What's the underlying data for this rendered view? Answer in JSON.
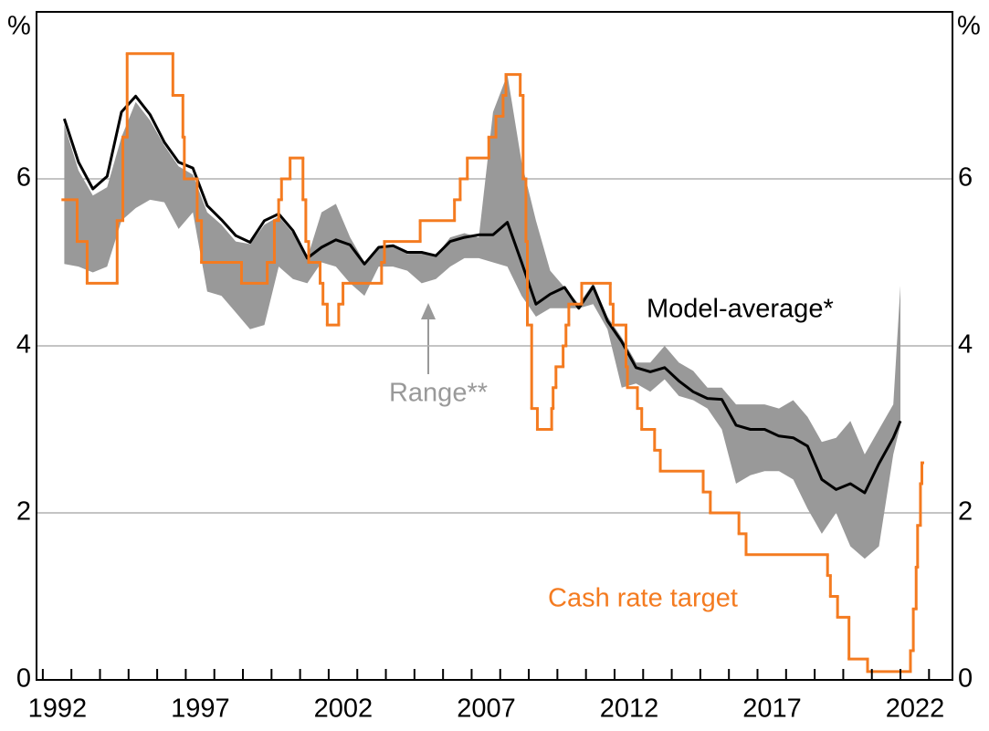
{
  "chart_data": {
    "type": "line",
    "y_label": "%",
    "y2_label": "%",
    "xlim": [
      1991.78,
      2023.82
    ],
    "xticks": [
      1992,
      1997,
      2002,
      2007,
      2012,
      2017,
      2022
    ],
    "xminorticks": [
      1992,
      1993,
      1994,
      1995,
      1996,
      1997,
      1998,
      1999,
      2000,
      2001,
      2002,
      2003,
      2004,
      2005,
      2006,
      2007,
      2008,
      2009,
      2010,
      2011,
      2012,
      2013,
      2014,
      2015,
      2016,
      2017,
      2018,
      2019,
      2020,
      2021,
      2022,
      2023
    ],
    "ylim": [
      0,
      8
    ],
    "yticks": [
      0,
      2,
      4,
      6
    ],
    "y2lim": [
      0,
      8
    ],
    "y2ticks": [
      0,
      2,
      4,
      6
    ],
    "grid": true,
    "band": {
      "name": "Range**",
      "color": "#999999",
      "x": [
        1992.75,
        1993.25,
        1993.75,
        1994.25,
        1994.75,
        1995.25,
        1995.75,
        1996.25,
        1996.75,
        1997.25,
        1997.75,
        1998.25,
        1998.75,
        1999.25,
        1999.75,
        2000.25,
        2000.75,
        2001.25,
        2001.75,
        2002.25,
        2002.75,
        2003.25,
        2003.75,
        2004.25,
        2004.75,
        2005.25,
        2005.75,
        2006.25,
        2006.75,
        2007.25,
        2007.75,
        2008.25,
        2008.75,
        2009.25,
        2009.75,
        2010.25,
        2010.75,
        2011.25,
        2011.75,
        2012.25,
        2012.75,
        2013.25,
        2013.75,
        2014.25,
        2014.75,
        2015.25,
        2015.75,
        2016.25,
        2016.75,
        2017.25,
        2017.75,
        2018.25,
        2018.75,
        2019.25,
        2019.75,
        2020.25,
        2020.75,
        2021.25,
        2021.75,
        2022.0
      ],
      "lower": [
        4.98,
        4.95,
        4.88,
        4.95,
        5.5,
        5.65,
        5.75,
        5.72,
        5.4,
        5.6,
        4.65,
        4.6,
        4.4,
        4.2,
        4.25,
        4.95,
        4.8,
        4.75,
        5.0,
        4.95,
        4.75,
        4.6,
        4.95,
        4.95,
        4.9,
        4.75,
        4.8,
        4.95,
        5.05,
        5.05,
        5.0,
        4.95,
        4.6,
        4.35,
        4.45,
        4.45,
        4.45,
        4.5,
        4.2,
        3.5,
        3.55,
        3.45,
        3.6,
        3.4,
        3.35,
        3.25,
        3.0,
        2.35,
        2.45,
        2.5,
        2.5,
        2.4,
        2.05,
        1.75,
        2.0,
        1.6,
        1.45,
        1.6,
        2.7,
        3.05
      ],
      "upper": [
        6.65,
        6.1,
        5.8,
        5.9,
        6.5,
        6.92,
        6.7,
        6.4,
        6.15,
        6.05,
        5.6,
        5.45,
        5.25,
        5.22,
        5.45,
        5.55,
        5.35,
        5.05,
        5.6,
        5.7,
        5.3,
        5.0,
        5.18,
        5.2,
        5.1,
        5.12,
        5.08,
        5.3,
        5.35,
        5.3,
        6.8,
        7.25,
        6.2,
        5.5,
        4.9,
        4.7,
        4.5,
        4.75,
        4.35,
        4.1,
        3.8,
        3.8,
        4.0,
        3.8,
        3.7,
        3.5,
        3.5,
        3.3,
        3.3,
        3.3,
        3.25,
        3.35,
        3.15,
        2.85,
        2.9,
        3.1,
        2.7,
        3.0,
        3.3,
        4.72
      ]
    },
    "series": [
      {
        "name": "Model-average*",
        "color": "#000000",
        "x": [
          1992.75,
          1993.25,
          1993.75,
          1994.25,
          1994.75,
          1995.25,
          1995.75,
          1996.25,
          1996.75,
          1997.25,
          1997.75,
          1998.25,
          1998.75,
          1999.25,
          1999.75,
          2000.25,
          2000.75,
          2001.25,
          2001.75,
          2002.25,
          2002.75,
          2003.25,
          2003.75,
          2004.25,
          2004.75,
          2005.25,
          2005.75,
          2006.25,
          2006.75,
          2007.25,
          2007.75,
          2008.25,
          2008.75,
          2009.25,
          2009.75,
          2010.25,
          2010.75,
          2011.25,
          2011.75,
          2012.25,
          2012.75,
          2013.25,
          2013.75,
          2014.25,
          2014.75,
          2015.25,
          2015.75,
          2016.25,
          2016.75,
          2017.25,
          2017.75,
          2018.25,
          2018.75,
          2019.25,
          2019.75,
          2020.25,
          2020.75,
          2021.25,
          2021.75,
          2022.0
        ],
        "values": [
          6.72,
          6.2,
          5.88,
          6.03,
          6.8,
          6.99,
          6.77,
          6.44,
          6.2,
          6.13,
          5.68,
          5.51,
          5.32,
          5.24,
          5.5,
          5.58,
          5.38,
          5.05,
          5.18,
          5.27,
          5.21,
          4.98,
          5.18,
          5.2,
          5.12,
          5.12,
          5.08,
          5.25,
          5.3,
          5.33,
          5.33,
          5.48,
          5.0,
          4.5,
          4.62,
          4.7,
          4.45,
          4.71,
          4.3,
          4.05,
          3.74,
          3.69,
          3.74,
          3.58,
          3.45,
          3.37,
          3.36,
          3.05,
          3.0,
          3.0,
          2.92,
          2.9,
          2.8,
          2.4,
          2.28,
          2.35,
          2.24,
          2.59,
          2.9,
          3.1
        ]
      },
      {
        "name": "Cash rate target",
        "color": "#f47b20",
        "step": true,
        "x": [
          1992.7,
          1993.2,
          1993.55,
          1994.6,
          1994.8,
          1994.95,
          1996.55,
          1996.9,
          1996.95,
          1997.4,
          1997.55,
          1998.95,
          1999.85,
          2000.1,
          2000.25,
          2000.35,
          2000.65,
          2001.1,
          2001.2,
          2001.3,
          2001.7,
          2001.8,
          2001.95,
          2002.35,
          2002.5,
          2003.85,
          2003.95,
          2005.2,
          2006.4,
          2006.6,
          2006.85,
          2007.6,
          2007.85,
          2008.1,
          2008.2,
          2008.7,
          2008.8,
          2008.9,
          2008.95,
          2009.1,
          2009.3,
          2009.8,
          2009.85,
          2009.95,
          2010.2,
          2010.3,
          2010.4,
          2010.85,
          2011.85,
          2011.95,
          2012.4,
          2012.45,
          2012.8,
          2012.95,
          2013.4,
          2013.6,
          2015.1,
          2015.35,
          2016.35,
          2016.6,
          2019.45,
          2019.55,
          2019.8,
          2020.2,
          2020.85,
          2022.35,
          2022.45,
          2022.55,
          2022.6,
          2022.7,
          2022.75
        ],
        "values": [
          5.75,
          5.25,
          4.75,
          5.5,
          6.5,
          7.5,
          7.0,
          6.5,
          6.0,
          5.5,
          5.0,
          4.75,
          5.0,
          5.5,
          5.75,
          6.0,
          6.25,
          5.75,
          5.25,
          5.0,
          4.75,
          4.5,
          4.25,
          4.5,
          4.75,
          5.0,
          5.25,
          5.5,
          5.75,
          6.0,
          6.25,
          6.5,
          6.75,
          7.0,
          7.25,
          7.0,
          6.0,
          5.25,
          4.25,
          3.25,
          3.0,
          3.25,
          3.5,
          3.75,
          4.0,
          4.25,
          4.5,
          4.75,
          4.5,
          4.25,
          3.75,
          3.5,
          3.25,
          3.0,
          2.75,
          2.5,
          2.25,
          2.0,
          1.75,
          1.5,
          1.25,
          1.0,
          0.75,
          0.25,
          0.1,
          0.35,
          0.85,
          1.35,
          1.85,
          2.35,
          2.6
        ]
      }
    ]
  }
}
